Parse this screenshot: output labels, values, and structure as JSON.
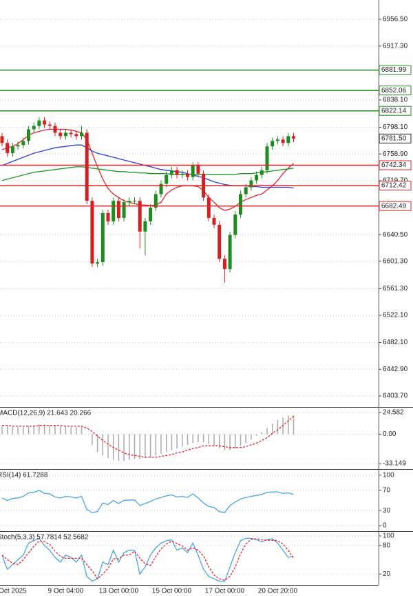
{
  "chart_data": [
    {
      "type": "candlestick",
      "categories": [
        null,
        null,
        "Oct 2025",
        null,
        null,
        null,
        null,
        null,
        null,
        null,
        null,
        null,
        "9 Oct 04:00",
        null,
        null,
        null,
        null,
        null,
        null,
        null,
        null,
        null,
        "13 Oct 00:00",
        null,
        null,
        null,
        null,
        null,
        null,
        null,
        null,
        null,
        "15 Oct 00:00",
        null,
        null,
        null,
        null,
        null,
        null,
        null,
        null,
        null,
        "17 Oct 00:00",
        null,
        null,
        null,
        null,
        null,
        null,
        null,
        null,
        null,
        "20 Oct 20:00",
        null,
        null,
        null
      ],
      "open": [
        6785,
        6775,
        6760,
        6770,
        6772,
        6778,
        6795,
        6800,
        6808,
        6802,
        6800,
        6790,
        6785,
        6790,
        6788,
        6785,
        6790,
        6690,
        6598,
        6600,
        6672,
        6660,
        6690,
        6665,
        6688,
        6690,
        6690,
        6645,
        6660,
        6680,
        6700,
        6715,
        6728,
        6735,
        6728,
        6730,
        6725,
        6742,
        6730,
        6695,
        6665,
        6655,
        6605,
        6590,
        6640,
        6670,
        6700,
        6710,
        6720,
        6728,
        6735,
        6770,
        6778,
        6780,
        6775,
        6785
      ],
      "high": [
        6790,
        6780,
        6775,
        6777,
        6783,
        6800,
        6805,
        6813,
        6813,
        6807,
        6805,
        6795,
        6795,
        6795,
        6793,
        6800,
        6795,
        6695,
        6605,
        6677,
        6677,
        6695,
        6695,
        6693,
        6695,
        6695,
        6695,
        6665,
        6685,
        6705,
        6720,
        6733,
        6740,
        6740,
        6735,
        6735,
        6747,
        6747,
        6735,
        6700,
        6670,
        6660,
        6610,
        6645,
        6675,
        6705,
        6715,
        6725,
        6733,
        6740,
        6775,
        6783,
        6785,
        6785,
        6790,
        6790
      ],
      "low": [
        6770,
        6755,
        6755,
        6765,
        6767,
        6773,
        6790,
        6795,
        6797,
        6795,
        6785,
        6780,
        6780,
        6783,
        6780,
        6780,
        6685,
        6593,
        6593,
        6595,
        6655,
        6655,
        6660,
        6660,
        6683,
        6685,
        6620,
        6610,
        6655,
        6675,
        6695,
        6710,
        6723,
        6723,
        6723,
        6720,
        6720,
        6725,
        6690,
        6660,
        6650,
        6600,
        6570,
        6585,
        6635,
        6665,
        6695,
        6705,
        6715,
        6723,
        6730,
        6765,
        6773,
        6770,
        6770,
        6776
      ],
      "close": [
        6775,
        6760,
        6770,
        6772,
        6778,
        6795,
        6800,
        6808,
        6802,
        6800,
        6790,
        6785,
        6790,
        6788,
        6785,
        6790,
        6690,
        6598,
        6600,
        6672,
        6660,
        6690,
        6665,
        6688,
        6690,
        6690,
        6645,
        6660,
        6680,
        6700,
        6715,
        6728,
        6735,
        6728,
        6730,
        6725,
        6742,
        6730,
        6695,
        6665,
        6655,
        6605,
        6590,
        6640,
        6670,
        6700,
        6710,
        6720,
        6728,
        6735,
        6770,
        6778,
        6780,
        6775,
        6785,
        6781.5
      ],
      "up_color": "#1e8c1e",
      "down_color": "#d42020",
      "ma": [
        {
          "color": "#e8202a",
          "values": [
            6765,
            6768,
            6770,
            6774,
            6780,
            6786,
            6790,
            6792,
            6794,
            6795,
            6795,
            6795,
            6795,
            6794,
            6792,
            6790,
            6780,
            6760,
            6740,
            6722,
            6708,
            6700,
            6695,
            6690,
            6688,
            6686,
            6684,
            6684,
            6683,
            6684,
            6688,
            6700,
            6706,
            6710,
            6712,
            6712,
            6712,
            6711,
            6705,
            6695,
            6688,
            6680,
            6676,
            6678,
            6682,
            6688,
            6692,
            6695,
            6698,
            6700,
            6706,
            6712,
            6720,
            6730,
            6738,
            6745
          ]
        },
        {
          "color": "#2a3fd6",
          "values": [
            6742,
            6745,
            6748,
            6751,
            6754,
            6757,
            6760,
            6762,
            6764,
            6766,
            6768,
            6769,
            6770,
            6771,
            6772,
            6772,
            6768,
            6763,
            6760,
            6758,
            6756,
            6754,
            6752,
            6750,
            6748,
            6746,
            6744,
            6742,
            6740,
            6738,
            6736,
            6735,
            6734,
            6733,
            6732,
            6730,
            6728,
            6726,
            6724,
            6721,
            6718,
            6716,
            6714,
            6713,
            6712,
            6712,
            6712,
            6711,
            6711,
            6710,
            6710,
            6710,
            6710,
            6710,
            6710,
            6709
          ]
        },
        {
          "color": "#1e9a2a",
          "values": [
            6720,
            6722,
            6724,
            6726,
            6728,
            6730,
            6732,
            6733,
            6734,
            6735,
            6736,
            6737,
            6738,
            6739,
            6740,
            6740,
            6739,
            6738,
            6737,
            6736,
            6735,
            6734,
            6733,
            6733,
            6732,
            6732,
            6731,
            6731,
            6730,
            6730,
            6730,
            6730,
            6729,
            6729,
            6729,
            6729,
            6729,
            6729,
            6729,
            6729,
            6729,
            6729,
            6729,
            6729,
            6729,
            6730,
            6730,
            6730,
            6731,
            6732,
            6733,
            6734,
            6735,
            6736,
            6737,
            6738
          ]
        }
      ],
      "levels": [
        {
          "value": 6881.99,
          "color": "#1e8c1e"
        },
        {
          "value": 6852.06,
          "color": "#1e8c1e"
        },
        {
          "value": 6822.14,
          "color": "#1e8c1e"
        },
        {
          "value": 6742.34,
          "color": "#e02020"
        },
        {
          "value": 6712.42,
          "color": "#e02020"
        },
        {
          "value": 6682.49,
          "color": "#e02020"
        }
      ],
      "last_price": {
        "value": 6781.5,
        "label": "6781.50"
      },
      "ylim": [
        6387.5,
        6984.85
      ],
      "yticks": [
        {
          "value": 6956.5,
          "label": "6956.50"
        },
        {
          "value": 6917.3,
          "label": "6917.30"
        },
        {
          "value": 6838.1,
          "label": "6838.10"
        },
        {
          "value": 6798.1,
          "label": "6798.10"
        },
        {
          "value": 6758.9,
          "label": "6758.90"
        },
        {
          "value": 6719.7,
          "label": "6719.70"
        },
        {
          "value": 6640.5,
          "label": "6640.50"
        },
        {
          "value": 6601.3,
          "label": "6601.30"
        },
        {
          "value": 6561.3,
          "label": "6561.30"
        },
        {
          "value": 6522.1,
          "label": "6522.10"
        },
        {
          "value": 6482.1,
          "label": "6482.10"
        },
        {
          "value": 6442.9,
          "label": "6442.90"
        },
        {
          "value": 6403.7,
          "label": "6403.70"
        }
      ],
      "grid": true
    },
    {
      "type": "macd",
      "label": "MACD(12,26,9) 21.643 20.266",
      "values": [
        9,
        9,
        8,
        8,
        8,
        9,
        10,
        11,
        11,
        10,
        10,
        9,
        9,
        8,
        8,
        8,
        0,
        -12,
        -20,
        -24,
        -27,
        -29,
        -30,
        -30,
        -29,
        -28,
        -28,
        -27,
        -26,
        -24,
        -22,
        -20,
        -18,
        -16,
        -14,
        -12,
        -10,
        -9,
        -9,
        -11,
        -13,
        -16,
        -18,
        -18,
        -16,
        -13,
        -10,
        -6,
        -2,
        2,
        7,
        12,
        16,
        19,
        21,
        21.643
      ],
      "color": "#a8a8a8",
      "signal": {
        "color": "#e8202a",
        "values": [
          10,
          10,
          9,
          9,
          9,
          9,
          9,
          10,
          10,
          10,
          10,
          10,
          9,
          9,
          9,
          9,
          7,
          3,
          -2,
          -7,
          -11,
          -15,
          -18,
          -21,
          -23,
          -24,
          -25,
          -26,
          -26,
          -26,
          -25,
          -24,
          -23,
          -21,
          -20,
          -18,
          -16,
          -15,
          -13,
          -13,
          -13,
          -13,
          -14,
          -15,
          -15,
          -15,
          -14,
          -12,
          -10,
          -7,
          -4,
          1,
          5,
          10,
          15,
          20.266
        ]
      },
      "ylim": [
        -39.31,
        29.97
      ],
      "yticks": [
        24.582,
        {
          "value": 0,
          "label": "0.00"
        },
        -33.149
      ]
    },
    {
      "type": "line",
      "label": "RSI(14) 61.7288",
      "series": [
        {
          "color": "#4aa3df",
          "values": [
            55,
            50,
            54,
            55,
            58,
            65,
            66,
            70,
            64,
            63,
            57,
            55,
            58,
            57,
            55,
            58,
            32,
            26,
            28,
            45,
            42,
            50,
            44,
            50,
            51,
            51,
            40,
            44,
            48,
            53,
            56,
            59,
            61,
            57,
            58,
            56,
            63,
            55,
            45,
            38,
            36,
            28,
            26,
            40,
            47,
            53,
            56,
            58,
            60,
            62,
            66,
            67,
            67,
            64,
            65,
            61.7288
          ]
        }
      ],
      "ylim": [
        -10.8,
        110.8
      ],
      "yticks": [
        100,
        70,
        30,
        0
      ]
    },
    {
      "type": "line",
      "label": "Stoch(5,3,3) 57.7814 52.5682",
      "series": [
        {
          "color": "#4aa3df",
          "values": [
            60,
            30,
            40,
            50,
            60,
            85,
            90,
            95,
            80,
            70,
            55,
            45,
            60,
            55,
            45,
            60,
            15,
            5,
            10,
            45,
            40,
            70,
            45,
            65,
            70,
            70,
            20,
            35,
            60,
            75,
            85,
            90,
            92,
            70,
            75,
            65,
            85,
            60,
            30,
            15,
            10,
            5,
            5,
            35,
            65,
            90,
            95,
            95,
            92,
            88,
            92,
            94,
            85,
            70,
            55,
            57.7814
          ]
        },
        {
          "color": "#e8202a",
          "dashed": true,
          "values": [
            60,
            50,
            43,
            40,
            50,
            65,
            78,
            90,
            88,
            82,
            68,
            57,
            53,
            53,
            53,
            53,
            40,
            27,
            10,
            20,
            32,
            52,
            52,
            60,
            60,
            68,
            53,
            42,
            38,
            57,
            73,
            83,
            89,
            84,
            79,
            70,
            75,
            70,
            58,
            35,
            18,
            10,
            7,
            15,
            35,
            63,
            83,
            93,
            94,
            92,
            91,
            91,
            90,
            83,
            70,
            52.5682
          ]
        }
      ],
      "ylim": [
        -2.9,
        108.6
      ],
      "yticks": [
        100,
        80,
        20
      ]
    }
  ]
}
